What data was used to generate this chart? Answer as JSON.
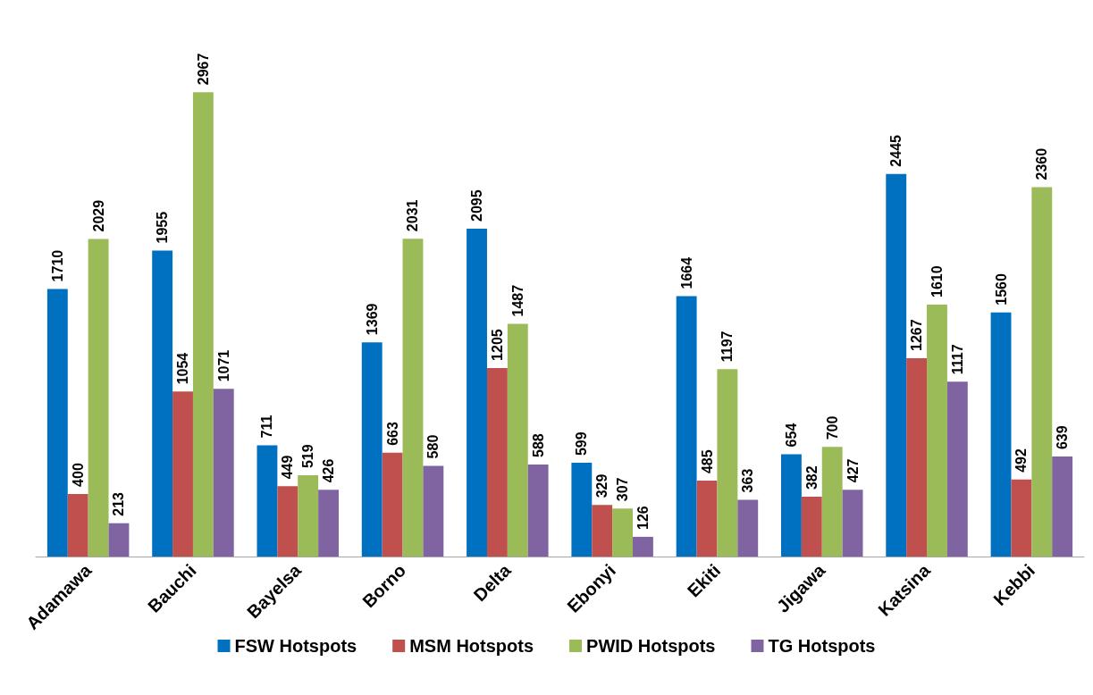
{
  "chart_data": {
    "type": "bar",
    "categories": [
      "Adamawa",
      "Bauchi",
      "Bayelsa",
      "Borno",
      "Delta",
      "Ebonyi",
      "Ekiti",
      "Jigawa",
      "Katsina",
      "Kebbi"
    ],
    "series": [
      {
        "name": "FSW Hotspots",
        "color": "#0070c0",
        "values": [
          1710,
          1955,
          711,
          1369,
          2095,
          599,
          1664,
          654,
          2445,
          1560
        ]
      },
      {
        "name": "MSM Hotspots",
        "color": "#c0504d",
        "values": [
          400,
          1054,
          449,
          663,
          1205,
          329,
          485,
          382,
          1267,
          492
        ]
      },
      {
        "name": "PWID Hotspots",
        "color": "#9bbb59",
        "values": [
          2029,
          2967,
          519,
          2031,
          1487,
          307,
          1197,
          700,
          1610,
          2360
        ]
      },
      {
        "name": "TG Hotspots",
        "color": "#8064a2",
        "values": [
          213,
          1071,
          426,
          580,
          588,
          126,
          363,
          427,
          1117,
          639
        ]
      }
    ],
    "data_labels": true,
    "tick_labels": "x",
    "legend": "bottom"
  }
}
